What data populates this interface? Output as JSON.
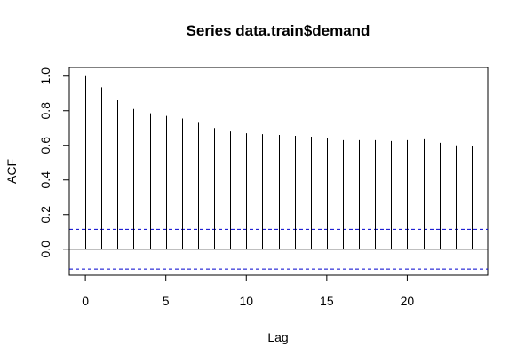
{
  "chart_data": {
    "type": "bar",
    "title": "Series  data.train$demand",
    "xlabel": "Lag",
    "ylabel": "ACF",
    "x": [
      0,
      1,
      2,
      3,
      4,
      5,
      6,
      7,
      8,
      9,
      10,
      11,
      12,
      13,
      14,
      15,
      16,
      17,
      18,
      19,
      20,
      21,
      22,
      23,
      24
    ],
    "values": [
      1.0,
      0.935,
      0.86,
      0.81,
      0.785,
      0.77,
      0.755,
      0.73,
      0.7,
      0.68,
      0.67,
      0.665,
      0.66,
      0.655,
      0.65,
      0.64,
      0.63,
      0.63,
      0.63,
      0.625,
      0.63,
      0.635,
      0.615,
      0.6,
      0.595
    ],
    "confidence_bound": 0.115,
    "xlim": [
      -1,
      25
    ],
    "ylim": [
      -0.15,
      1.05
    ],
    "xticks": [
      0,
      5,
      10,
      15,
      20
    ],
    "xtick_labels": [
      "0",
      "5",
      "10",
      "15",
      "20"
    ],
    "yticks": [
      0.0,
      0.2,
      0.4,
      0.6,
      0.8,
      1.0
    ],
    "ytick_labels": [
      "0.0",
      "0.2",
      "0.4",
      "0.6",
      "0.8",
      "1.0"
    ],
    "bar_color": "#000000",
    "ci_color": "#0000CD",
    "grid": false
  }
}
